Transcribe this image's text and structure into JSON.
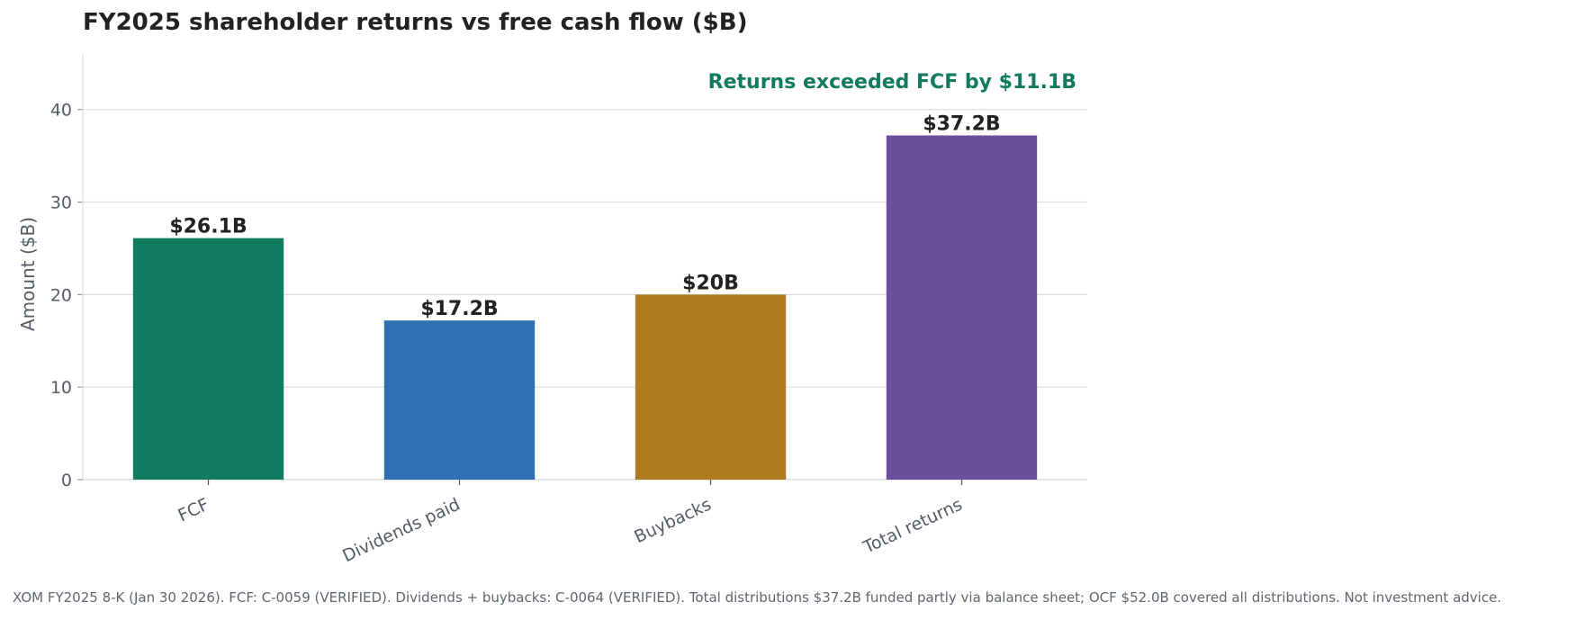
{
  "chart_data": {
    "type": "bar",
    "title": "FY2025 shareholder returns vs free cash flow ($B)",
    "xlabel": "",
    "ylabel": "Amount ($B)",
    "ylim": [
      0,
      46
    ],
    "yticks": [
      0,
      10,
      20,
      30,
      40
    ],
    "grid": "horizontal",
    "categories": [
      "FCF",
      "Dividends paid",
      "Buybacks",
      "Total returns"
    ],
    "values": [
      26.1,
      17.2,
      20.0,
      37.2
    ],
    "value_labels": [
      "$26.1B",
      "$17.2B",
      "$20B",
      "$37.2B"
    ],
    "colors": [
      "#117a5f",
      "#2f70b5",
      "#b07a20",
      "#6b4f9c"
    ],
    "annotation": {
      "text": "Returns exceeded FCF by $11.1B",
      "color": "#117a5f"
    }
  },
  "footnote": "XOM FY2025 8-K (Jan 30 2026). FCF: C-0059 (VERIFIED). Dividends + buybacks: C-0064 (VERIFIED). Total distributions $37.2B funded partly via balance sheet; OCF $52.0B covered all distributions. Not investment advice."
}
